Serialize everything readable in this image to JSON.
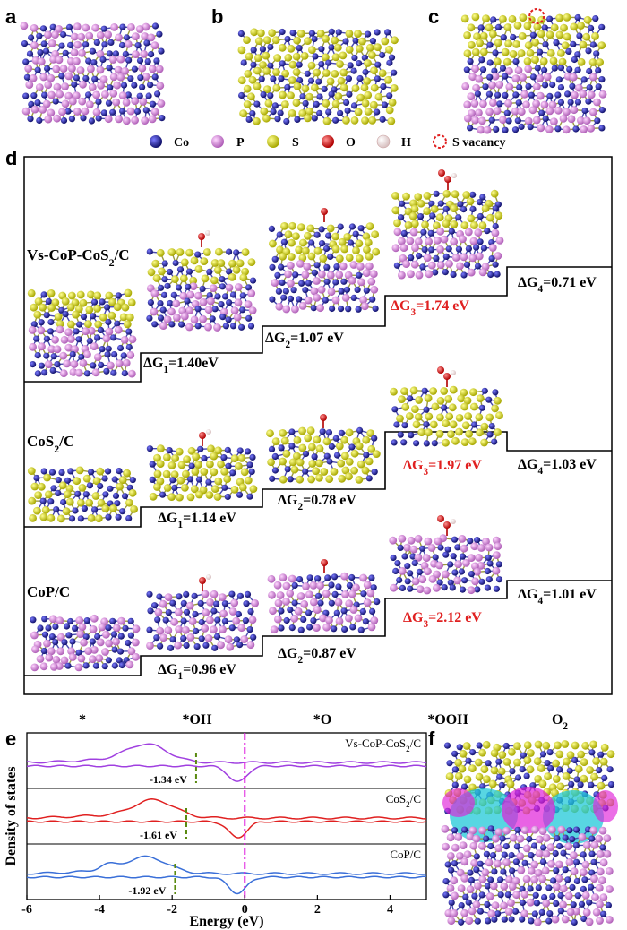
{
  "panels": {
    "a": "a",
    "b": "b",
    "c": "c",
    "d": "d",
    "e": "e",
    "f": "f"
  },
  "legend": [
    {
      "label": "Co",
      "color": "#23239a"
    },
    {
      "label": "P",
      "color": "#d98ad8"
    },
    {
      "label": "S",
      "color": "#d8d820"
    },
    {
      "label": "O",
      "color": "#e02020"
    },
    {
      "label": "H",
      "color": "#f3dede"
    },
    {
      "label": "S vacancy",
      "color": "#e02020"
    }
  ],
  "free_energy": {
    "steps": [
      "*",
      "*OH",
      "*O",
      "*OOH",
      "O2"
    ],
    "systems": [
      {
        "name": "Vs-CoP-CoS2/C",
        "dG": [
          {
            "label": "ΔG1=1.40eV",
            "value": 1.4,
            "highlight": false
          },
          {
            "label": "ΔG2=1.07 eV",
            "value": 1.07,
            "highlight": false
          },
          {
            "label": "ΔG3=1.74 eV",
            "value": 1.74,
            "highlight": true
          },
          {
            "label": "ΔG4=0.71 eV",
            "value": 0.71,
            "highlight": false
          }
        ]
      },
      {
        "name": "CoS2/C",
        "dG": [
          {
            "label": "ΔG1=1.14 eV",
            "value": 1.14,
            "highlight": false
          },
          {
            "label": "ΔG2=0.78 eV",
            "value": 0.78,
            "highlight": false
          },
          {
            "label": "ΔG3=1.97 eV",
            "value": 1.97,
            "highlight": true
          },
          {
            "label": "ΔG4=1.03 eV",
            "value": 1.03,
            "highlight": false
          }
        ]
      },
      {
        "name": "CoP/C",
        "dG": [
          {
            "label": "ΔG1=0.96 eV",
            "value": 0.96,
            "highlight": false
          },
          {
            "label": "ΔG2=0.87 eV",
            "value": 0.87,
            "highlight": false
          },
          {
            "label": "ΔG3=2.12 eV",
            "value": 2.12,
            "highlight": true
          },
          {
            "label": "ΔG4=1.01 eV",
            "value": 1.01,
            "highlight": false
          }
        ]
      }
    ]
  },
  "chart_data": {
    "type": "line",
    "title": "",
    "xlabel": "Energy (eV)",
    "ylabel": "Density of states",
    "xlim": [
      -6,
      5
    ],
    "xticks": [
      -6,
      -4,
      -2,
      0,
      2,
      4
    ],
    "fermi_level": 0,
    "series": [
      {
        "name": "Vs-CoP-CoS2/C",
        "color": "#a040e0",
        "d_band_center": -1.34,
        "center_label": "-1.34 eV"
      },
      {
        "name": "CoS2/C",
        "color": "#e02020",
        "d_band_center": -1.61,
        "center_label": "-1.61 eV"
      },
      {
        "name": "CoP/C",
        "color": "#3a6fd8",
        "d_band_center": -1.92,
        "center_label": "-1.92 eV"
      }
    ]
  },
  "colors": {
    "highlight": "#e02020",
    "text": "#000000",
    "fermi": "#e020e0",
    "dband": "#5a8a10"
  }
}
